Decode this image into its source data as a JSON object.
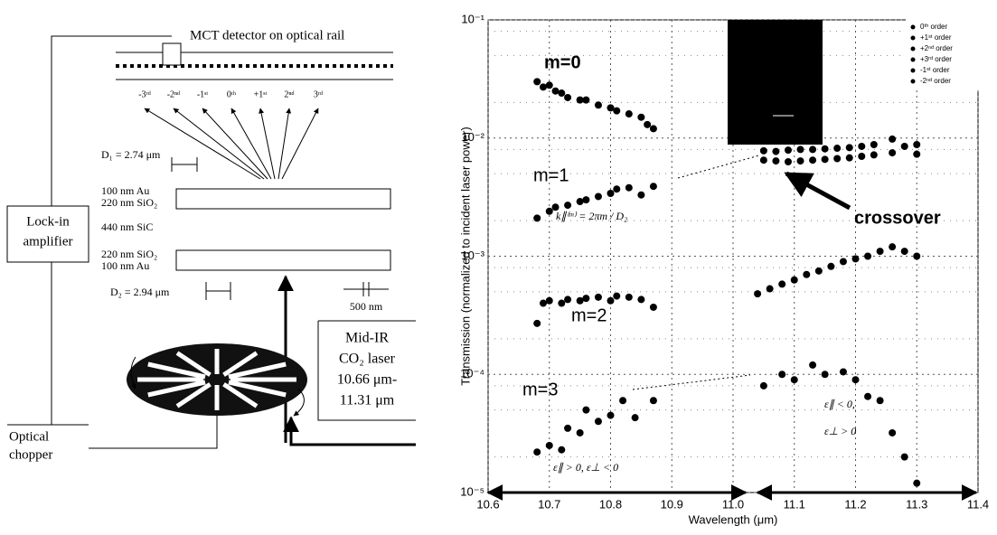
{
  "diagram": {
    "detector": "MCT detector on optical rail",
    "orders": [
      "-3ʳᵈ",
      "-2ⁿᵈ",
      "-1ˢᵗ",
      "0ᵗʰ",
      "+1ˢᵗ",
      "2ⁿᵈ",
      "3ʳᵈ"
    ],
    "d1": "D₁ = 2.74 μm",
    "top_layers": [
      "100 nm Au",
      "220 nm SiO₂"
    ],
    "middle_layer": "440 nm SiC",
    "bottom_layers": [
      "220 nm SiO₂",
      "100 nm Au"
    ],
    "d2": "D₂ = 2.94 μm",
    "period": "500 nm",
    "lockin": [
      "Lock-in",
      "amplifier"
    ],
    "laser": [
      "Mid-IR",
      "CO₂ laser",
      "10.66 μm-",
      "11.31 μm"
    ],
    "chopper": [
      "Optical",
      "chopper"
    ]
  },
  "chart_data": {
    "type": "scatter",
    "xlabel": "Wavelength (μm)",
    "ylabel": "Transmission (normalized to incident laser power)",
    "xlim": [
      10.6,
      11.4
    ],
    "xticks": [
      10.6,
      10.7,
      10.8,
      10.9,
      {
        "value": 11,
        "label": "11.0"
      },
      11.1,
      11.2,
      11.3,
      11.4
    ],
    "ylim": [
      1e-05,
      0.1
    ],
    "yticks": [
      {
        "value": 1e-05,
        "label": "10⁻⁵"
      },
      {
        "value": 0.0001,
        "label": "10⁻⁴"
      },
      {
        "value": 0.001,
        "label": "10⁻³"
      },
      {
        "value": 0.01,
        "label": "10⁻²"
      },
      {
        "value": 0.1,
        "label": "10⁻¹"
      }
    ],
    "log_y": true,
    "grid": true,
    "legend": "upper right",
    "annotations": [
      "m=0",
      "m=1",
      "m=2",
      "m=3",
      "crossover",
      "k∥⁽ᵐ⁾ = 2πm / D₂",
      "ε∥ > 0, ε⊥ < 0",
      "ε∥ < 0,",
      "ε⊥ > 0"
    ],
    "series": [
      {
        "name": "0ᵗʰ order",
        "color": "#000000",
        "x": [
          10.68,
          10.69,
          10.7,
          10.71,
          10.72,
          10.73,
          10.75,
          10.76,
          10.78,
          10.8,
          10.81,
          10.83,
          10.85,
          10.86,
          10.87
        ],
        "values": [
          0.03,
          0.027,
          0.028,
          0.025,
          0.024,
          0.022,
          0.021,
          0.021,
          0.019,
          0.018,
          0.017,
          0.016,
          0.015,
          0.013,
          0.012
        ]
      },
      {
        "name": "+1ˢᵗ order",
        "color": "#000000",
        "x": [
          10.68,
          10.7,
          10.71,
          10.73,
          10.75,
          10.76,
          10.78,
          10.8,
          10.81,
          10.83,
          10.85,
          10.87,
          11.05,
          11.07,
          11.09,
          11.11,
          11.13,
          11.15,
          11.17,
          11.19,
          11.21,
          11.23,
          11.26,
          11.28,
          11.3
        ],
        "values": [
          0.0021,
          0.0024,
          0.0026,
          0.0027,
          0.0029,
          0.003,
          0.0032,
          0.0034,
          0.0037,
          0.0038,
          0.0033,
          0.0039,
          0.0078,
          0.0077,
          0.0079,
          0.008,
          0.008,
          0.0081,
          0.0082,
          0.0083,
          0.0085,
          0.0088,
          0.0098,
          0.0085,
          0.0088
        ]
      },
      {
        "name": "+2ⁿᵈ order",
        "color": "#000000",
        "x": [
          10.68,
          10.69,
          10.7,
          10.72,
          10.73,
          10.75,
          10.76,
          10.78,
          10.8,
          10.81,
          10.83,
          10.85,
          10.87
        ],
        "values": [
          0.00027,
          0.0004,
          0.00042,
          0.0004,
          0.00043,
          0.00042,
          0.00044,
          0.00045,
          0.00042,
          0.00046,
          0.00045,
          0.00043,
          0.00037
        ]
      },
      {
        "name": "+3ʳᵈ order",
        "color": "#000000",
        "x": [
          10.68,
          10.7,
          10.72,
          10.73,
          10.75,
          10.76,
          10.78,
          10.8,
          10.82,
          10.84,
          10.87,
          11.05,
          11.08,
          11.1,
          11.13,
          11.15,
          11.18,
          11.2,
          11.22,
          11.24,
          11.26,
          11.28,
          11.3
        ],
        "values": [
          2.2e-05,
          2.5e-05,
          2.3e-05,
          3.5e-05,
          3.2e-05,
          5e-05,
          4e-05,
          4.5e-05,
          6e-05,
          4.3e-05,
          6e-05,
          8e-05,
          0.0001,
          9e-05,
          0.00012,
          0.0001,
          0.000105,
          9e-05,
          6.5e-05,
          6e-05,
          3.2e-05,
          2e-05,
          1.2e-05
        ]
      },
      {
        "name": "-1ˢᵗ order",
        "color": "#000000",
        "x": [
          11.05,
          11.07,
          11.09,
          11.11,
          11.13,
          11.15,
          11.17,
          11.19,
          11.21,
          11.23,
          11.26,
          11.3
        ],
        "values": [
          0.0065,
          0.0064,
          0.0063,
          0.0064,
          0.0065,
          0.0066,
          0.0067,
          0.0068,
          0.007,
          0.0072,
          0.0075,
          0.0073
        ]
      },
      {
        "name": "-2ⁿᵈ order",
        "color": "#000000",
        "x": [
          11.04,
          11.06,
          11.08,
          11.1,
          11.12,
          11.14,
          11.16,
          11.18,
          11.2,
          11.22,
          11.24,
          11.26,
          11.28,
          11.3
        ],
        "values": [
          0.00048,
          0.00053,
          0.00058,
          0.00063,
          0.0007,
          0.00075,
          0.00082,
          0.0009,
          0.00095,
          0.001,
          0.0011,
          0.0012,
          0.0011,
          0.001
        ]
      }
    ]
  }
}
